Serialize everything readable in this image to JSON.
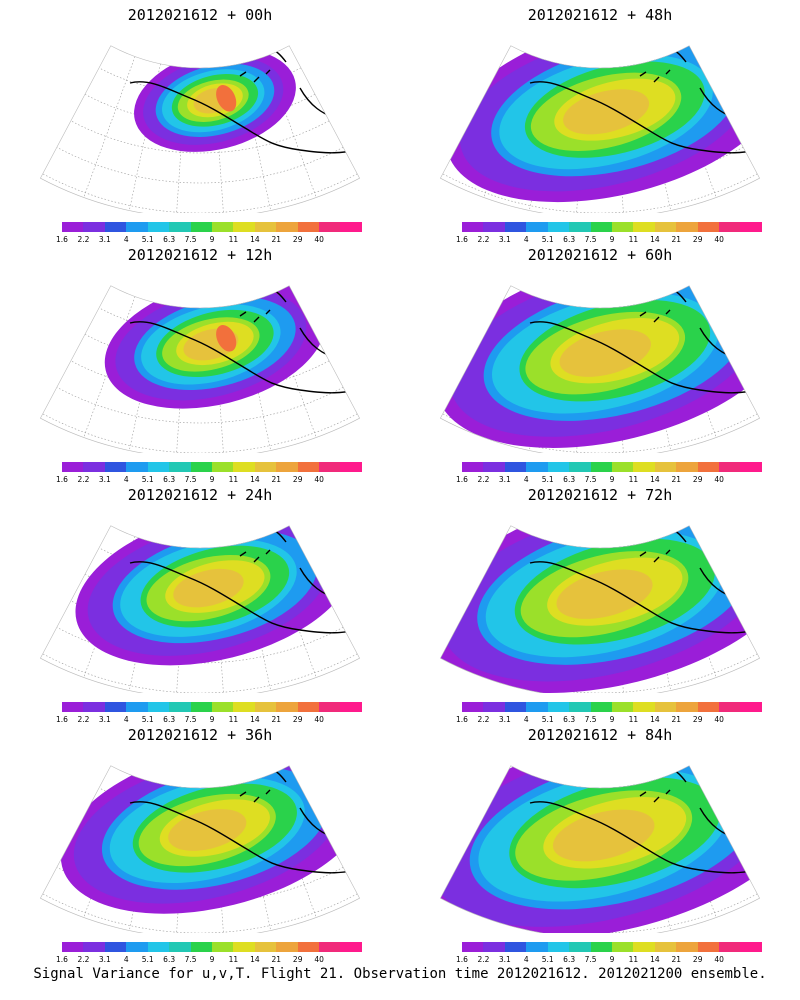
{
  "panels": [
    {
      "title": "2012021612 + 00h",
      "spread": 0.15,
      "intensity": 1.0
    },
    {
      "title": "2012021612 + 12h",
      "spread": 0.35,
      "intensity": 0.95
    },
    {
      "title": "2012021612 + 24h",
      "spread": 0.55,
      "intensity": 0.75
    },
    {
      "title": "2012021612 + 36h",
      "spread": 0.65,
      "intensity": 0.72
    },
    {
      "title": "2012021612 + 48h",
      "spread": 0.75,
      "intensity": 0.72
    },
    {
      "title": "2012021612 + 60h",
      "spread": 0.82,
      "intensity": 0.72
    },
    {
      "title": "2012021612 + 72h",
      "spread": 0.88,
      "intensity": 0.72
    },
    {
      "title": "2012021612 + 84h",
      "spread": 0.95,
      "intensity": 0.72
    }
  ],
  "colorbar": {
    "labels": [
      "1.6",
      "2.2",
      "3.1",
      "4",
      "5.1",
      "6.3",
      "7.5",
      "9",
      "11",
      "14",
      "21",
      "29",
      "40"
    ],
    "colors": [
      "#9a1ed8",
      "#7b2fe0",
      "#2f55e0",
      "#1e9bf0",
      "#22c5e8",
      "#22c8b4",
      "#2ad24b",
      "#9be02a",
      "#dede22",
      "#e6c23c",
      "#eda43c",
      "#f2703c",
      "#f02a7a",
      "#ff1a8c"
    ]
  },
  "footer": "Signal Variance for u,v,T. Flight 21. Observation time 2012021612. 2012021200 ensemble."
}
